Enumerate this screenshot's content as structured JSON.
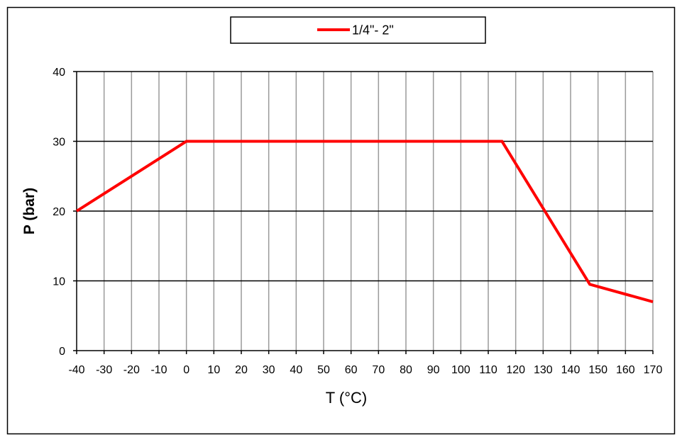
{
  "chart_data": {
    "type": "line",
    "title": "",
    "xlabel": "T (°C)",
    "ylabel": "P (bar)",
    "xlim": [
      -40,
      170
    ],
    "ylim": [
      0,
      40
    ],
    "x_ticks": [
      -40,
      -30,
      -20,
      -10,
      0,
      10,
      20,
      30,
      40,
      50,
      60,
      70,
      80,
      90,
      100,
      110,
      120,
      130,
      140,
      150,
      160,
      170
    ],
    "y_ticks": [
      0,
      10,
      20,
      30,
      40
    ],
    "x_tick_labels": [
      "-40",
      "-30",
      "-20",
      "-10",
      "0",
      "10",
      "20",
      "30",
      "40",
      "50",
      "60",
      "70",
      "80",
      "90",
      "100",
      "110",
      "120",
      "130",
      "140",
      "150",
      "160",
      "170"
    ],
    "y_tick_labels": [
      "0",
      "10",
      "20",
      "30",
      "40"
    ],
    "grid": true,
    "legend_position": "top",
    "series": [
      {
        "name": "1/4\"- 2\"",
        "color": "#ff0000",
        "x": [
          -40,
          0,
          115,
          147,
          170
        ],
        "y": [
          20,
          30,
          30,
          9.5,
          7
        ]
      }
    ]
  }
}
